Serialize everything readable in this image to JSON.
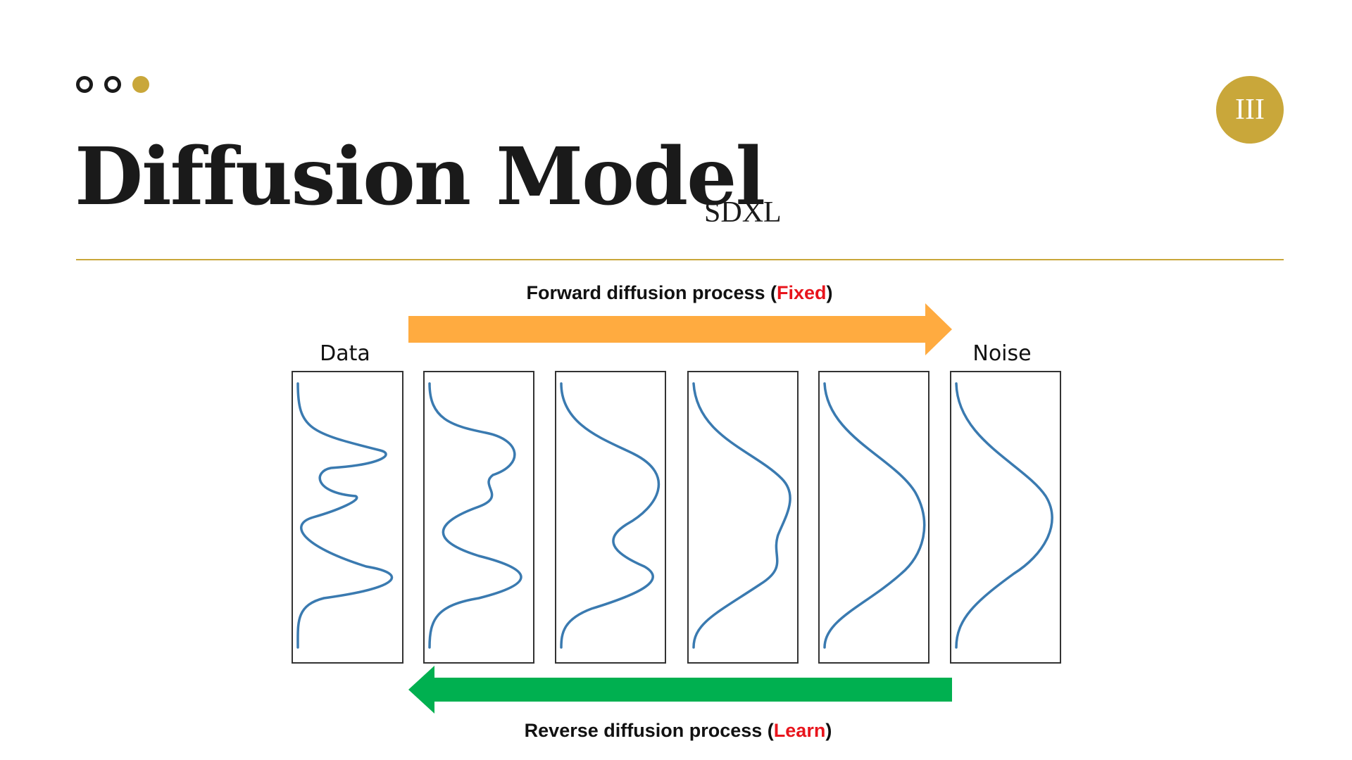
{
  "slide": {
    "section_number": "III",
    "title": "Diffusion Model",
    "subtitle": "SDXL"
  },
  "diagram": {
    "forward": {
      "prefix": "Forward diffusion process (",
      "accent": "Fixed",
      "suffix": ")",
      "color": "#ffab40"
    },
    "reverse": {
      "prefix": "Reverse diffusion process (",
      "accent": "Learn",
      "suffix": ")",
      "color": "#00b050"
    },
    "start_label": "Data",
    "end_label": "Noise",
    "accent_color": "#e8141c",
    "step_count": 6
  }
}
